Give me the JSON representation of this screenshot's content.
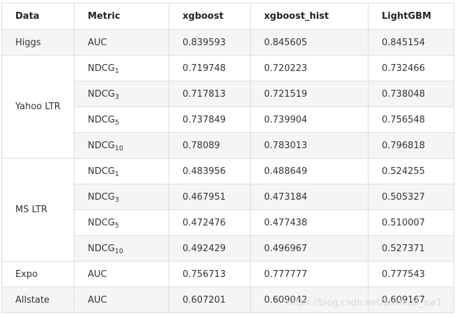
{
  "table": {
    "headers": [
      "Data",
      "Metric",
      "xgboost",
      "xgboost_hist",
      "LightGBM"
    ],
    "rows": [
      {
        "data": "Higgs",
        "metric": "AUC",
        "sub": "",
        "values": [
          "0.839593",
          "0.845605",
          "0.845154"
        ]
      },
      {
        "data": "Yahoo LTR",
        "metric": "NDCG",
        "sub": "1",
        "values": [
          "0.719748",
          "0.720223",
          "0.732466"
        ]
      },
      {
        "data": "",
        "metric": "NDCG",
        "sub": "3",
        "values": [
          "0.717813",
          "0.721519",
          "0.738048"
        ]
      },
      {
        "data": "",
        "metric": "NDCG",
        "sub": "5",
        "values": [
          "0.737849",
          "0.739904",
          "0.756548"
        ]
      },
      {
        "data": "",
        "metric": "NDCG",
        "sub": "10",
        "values": [
          "0.78089",
          "0.783013",
          "0.796818"
        ]
      },
      {
        "data": "MS LTR",
        "metric": "NDCG",
        "sub": "1",
        "values": [
          "0.483956",
          "0.488649",
          "0.524255"
        ]
      },
      {
        "data": "",
        "metric": "NDCG",
        "sub": "3",
        "values": [
          "0.467951",
          "0.473184",
          "0.505327"
        ]
      },
      {
        "data": "",
        "metric": "NDCG",
        "sub": "5",
        "values": [
          "0.472476",
          "0.477438",
          "0.510007"
        ]
      },
      {
        "data": "",
        "metric": "NDCG",
        "sub": "10",
        "values": [
          "0.492429",
          "0.496967",
          "0.527371"
        ]
      },
      {
        "data": "Expo",
        "metric": "AUC",
        "sub": "",
        "values": [
          "0.756713",
          "0.777777",
          "0.777543"
        ]
      },
      {
        "data": "Allstate",
        "metric": "AUC",
        "sub": "",
        "values": [
          "0.607201",
          "0.609042",
          "0.609167"
        ]
      }
    ]
  },
  "watermark": "https://blog.csdn.net/anshuai_aw1"
}
